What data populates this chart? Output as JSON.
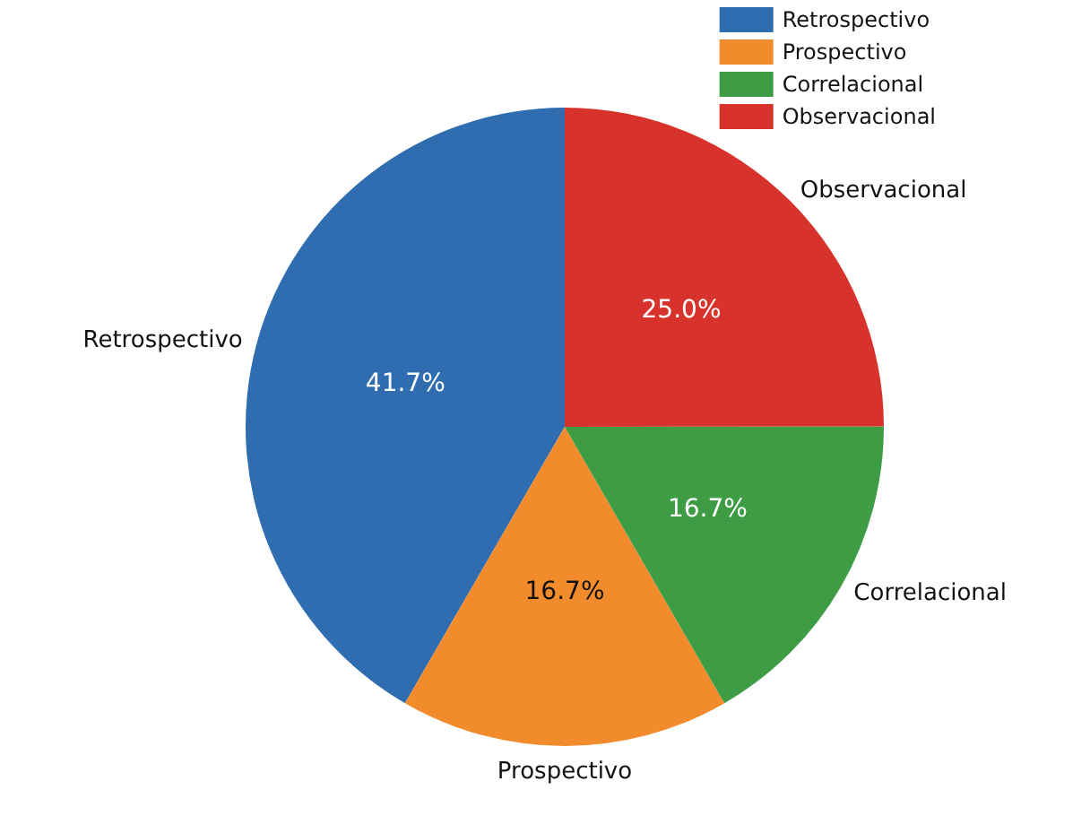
{
  "chart_data": {
    "type": "pie",
    "categories": [
      "Retrospectivo",
      "Prospectivo",
      "Correlacional",
      "Observacional"
    ],
    "values": [
      41.7,
      16.7,
      16.7,
      25.0
    ],
    "colors": [
      "#2f6db0",
      "#f28b2c",
      "#3e9c45",
      "#d7322b"
    ],
    "value_labels": [
      "41.7%",
      "16.7%",
      "16.7%",
      "25.0%"
    ],
    "legend": "top right"
  }
}
